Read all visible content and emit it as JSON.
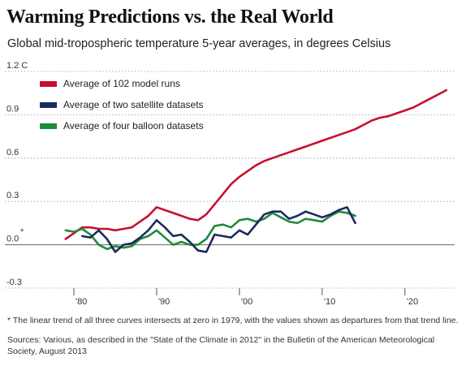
{
  "chart_data": {
    "type": "line",
    "title": "Warming Predictions vs. the Real World",
    "subtitle": "Global mid-tropospheric temperature 5-year averages, in degrees Celsius",
    "y_unit_label": "1.2 C",
    "ylim": [
      -0.3,
      1.2
    ],
    "xlim": [
      1975,
      2026
    ],
    "y_ticks": [
      -0.3,
      0.0,
      0.3,
      0.6,
      0.9,
      1.2
    ],
    "y_tick_labels": [
      "-0.3",
      "0.0",
      "0.3",
      "0.6",
      "0.9",
      "1.2 C"
    ],
    "x_ticks": [
      1980,
      1990,
      2000,
      2010,
      2020
    ],
    "x_tick_labels": [
      "'80",
      "'90",
      "'00",
      "'10",
      "'20"
    ],
    "grid": "horizontal dotted",
    "legend_position": "top-left",
    "asterisk_note": "*",
    "series": [
      {
        "name": "Average of 102 model runs",
        "color": "#c8102e",
        "x": [
          1979,
          1980,
          1981,
          1982,
          1983,
          1984,
          1985,
          1986,
          1987,
          1988,
          1989,
          1990,
          1991,
          1992,
          1993,
          1994,
          1995,
          1996,
          1997,
          1998,
          1999,
          2000,
          2001,
          2002,
          2003,
          2004,
          2005,
          2006,
          2007,
          2008,
          2009,
          2010,
          2011,
          2012,
          2013,
          2014,
          2015,
          2016,
          2017,
          2018,
          2019,
          2020,
          2021,
          2022,
          2023,
          2024,
          2025
        ],
        "y": [
          0.04,
          0.08,
          0.12,
          0.12,
          0.11,
          0.11,
          0.1,
          0.11,
          0.12,
          0.16,
          0.2,
          0.26,
          0.24,
          0.22,
          0.2,
          0.18,
          0.17,
          0.21,
          0.28,
          0.35,
          0.42,
          0.47,
          0.51,
          0.55,
          0.58,
          0.6,
          0.62,
          0.64,
          0.66,
          0.68,
          0.7,
          0.72,
          0.74,
          0.76,
          0.78,
          0.8,
          0.83,
          0.86,
          0.88,
          0.89,
          0.91,
          0.93,
          0.95,
          0.98,
          1.01,
          1.04,
          1.07
        ]
      },
      {
        "name": "Average of two satellite datasets",
        "color": "#1b2a5e",
        "x": [
          1981,
          1982,
          1983,
          1984,
          1985,
          1986,
          1987,
          1988,
          1989,
          1990,
          1991,
          1992,
          1993,
          1994,
          1995,
          1996,
          1997,
          1998,
          1999,
          2000,
          2001,
          2002,
          2003,
          2004,
          2005,
          2006,
          2007,
          2008,
          2009,
          2010,
          2011,
          2012,
          2013,
          2014
        ],
        "y": [
          0.06,
          0.05,
          0.1,
          0.04,
          -0.05,
          0.0,
          0.01,
          0.05,
          0.1,
          0.17,
          0.12,
          0.06,
          0.07,
          0.02,
          -0.04,
          -0.05,
          0.07,
          0.06,
          0.05,
          0.1,
          0.07,
          0.14,
          0.21,
          0.23,
          0.23,
          0.18,
          0.2,
          0.23,
          0.21,
          0.19,
          0.21,
          0.24,
          0.26,
          0.15
        ]
      },
      {
        "name": "Average of four balloon datasets",
        "color": "#1f8a3c",
        "x": [
          1979,
          1980,
          1981,
          1982,
          1983,
          1984,
          1985,
          1986,
          1987,
          1988,
          1989,
          1990,
          1991,
          1992,
          1993,
          1994,
          1995,
          1996,
          1997,
          1998,
          1999,
          2000,
          2001,
          2002,
          2003,
          2004,
          2005,
          2006,
          2007,
          2008,
          2009,
          2010,
          2011,
          2012,
          2013,
          2014
        ],
        "y": [
          0.1,
          0.09,
          0.11,
          0.07,
          0.0,
          -0.03,
          -0.01,
          -0.02,
          -0.01,
          0.04,
          0.06,
          0.1,
          0.05,
          0.0,
          0.02,
          0.0,
          0.0,
          0.04,
          0.13,
          0.14,
          0.12,
          0.17,
          0.18,
          0.16,
          0.18,
          0.22,
          0.19,
          0.16,
          0.15,
          0.18,
          0.17,
          0.16,
          0.2,
          0.23,
          0.22,
          0.2
        ]
      }
    ]
  },
  "footnotes": {
    "note": "* The linear trend of all three curves intersects at zero in 1979, with the values shown as departures from that trend line.",
    "sources": "Sources: Various, as described in the \"State of the Climate in 2012\" in the Bulletin of the American Meteorological Society, August 2013"
  }
}
